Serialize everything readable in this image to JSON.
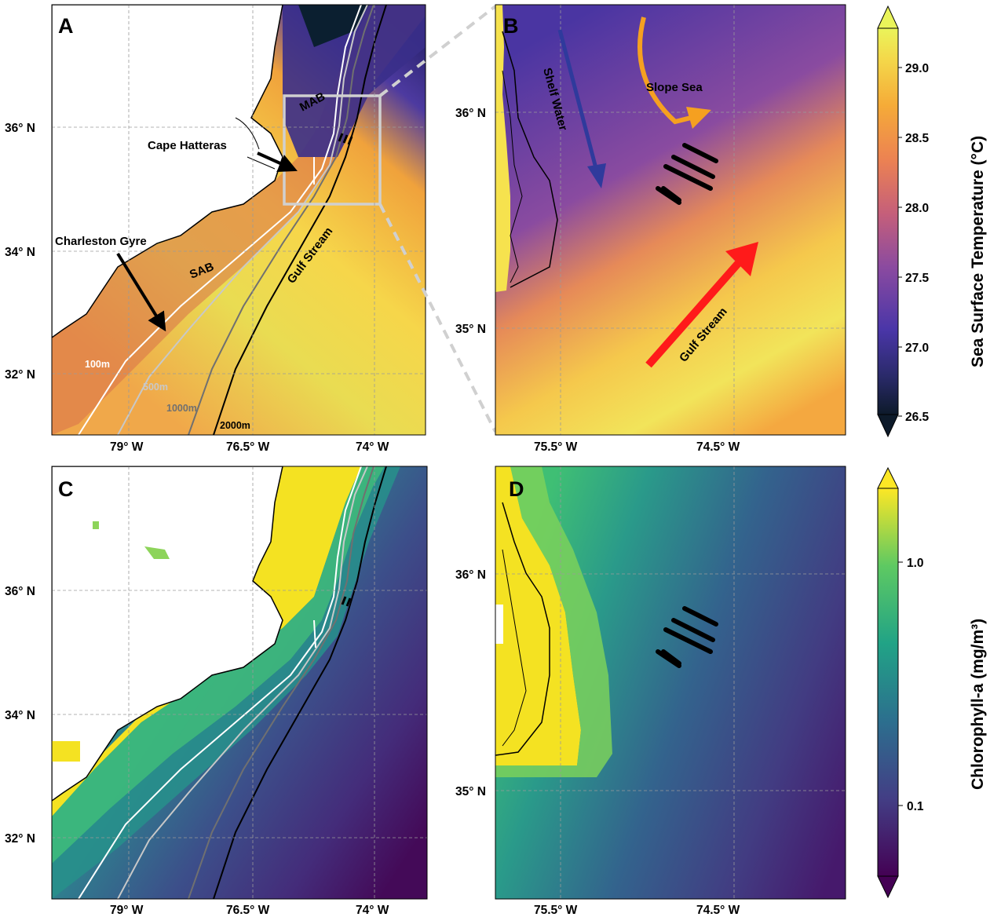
{
  "panels": {
    "A": {
      "letter": "A"
    },
    "B": {
      "letter": "B"
    },
    "C": {
      "letter": "C"
    },
    "D": {
      "letter": "D"
    }
  },
  "wide_axes": {
    "lat_ticks": [
      "36° N",
      "34° N",
      "32° N"
    ],
    "lon_ticks": [
      "79° W",
      "76.5° W",
      "74° W"
    ]
  },
  "zoom_axes": {
    "lat_ticks": [
      "36° N",
      "35° N"
    ],
    "lon_ticks": [
      "75.5° W",
      "74.5° W"
    ]
  },
  "annotations_A": {
    "cape_hatteras": "Cape Hatteras",
    "charleston_gyre": "Charleston Gyre",
    "mab": "MAB",
    "sab": "SAB",
    "gulf_stream": "Gulf Stream",
    "iso_100": "100m",
    "iso_500": "500m",
    "iso_1000": "1000m",
    "iso_2000": "2000m"
  },
  "annotations_B": {
    "shelf_water": "Shelf Water",
    "slope_sea": "Slope Sea",
    "gulf_stream": "Gulf Stream"
  },
  "colorbar_sst": {
    "title": "Sea Surface Temperature (°C)",
    "ticks": [
      "29.0",
      "28.5",
      "28.0",
      "27.5",
      "27.0",
      "26.5"
    ],
    "range": [
      26.5,
      29.3
    ],
    "colormap": "plasma"
  },
  "colorbar_chl": {
    "title": "Chlorophyll-a (mg/m³)",
    "ticks": [
      "1.0",
      "0.1"
    ],
    "scale": "log",
    "colormap": "viridis"
  },
  "colors": {
    "shelf_water_arrow": "#2f3a9c",
    "slope_sea_arrow": "#f5a020",
    "gulf_stream_arrow": "#ff1a1a",
    "zoom_box": "#d0d0d0"
  }
}
